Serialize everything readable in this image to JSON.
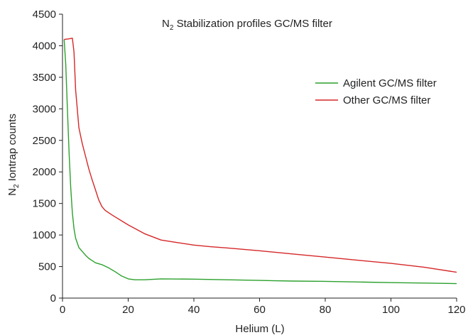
{
  "chart_data": {
    "type": "line",
    "title_main": "N",
    "title_sub": "2",
    "title_rest": " Stabilization profiles GC/MS filter",
    "xlabel": "Helium (L)",
    "ylabel_main": "N",
    "ylabel_sub": "2",
    "ylabel_rest": " Iontrap counts",
    "xlim": [
      0,
      120
    ],
    "ylim": [
      0,
      4500
    ],
    "xticks": [
      0,
      20,
      40,
      60,
      80,
      100,
      120
    ],
    "yticks": [
      0,
      500,
      1000,
      1500,
      2000,
      2500,
      3000,
      3500,
      4000,
      4500
    ],
    "grid": false,
    "legend_position": "top-right",
    "series": [
      {
        "name": "Agilent GC/MS filter",
        "color": "#2ca02c",
        "points": [
          [
            0.5,
            4100
          ],
          [
            1,
            3700
          ],
          [
            1.5,
            3000
          ],
          [
            2,
            2300
          ],
          [
            2.5,
            1750
          ],
          [
            3,
            1350
          ],
          [
            3.5,
            1100
          ],
          [
            4,
            950
          ],
          [
            5,
            800
          ],
          [
            6,
            740
          ],
          [
            7,
            680
          ],
          [
            8,
            630
          ],
          [
            10,
            560
          ],
          [
            12,
            530
          ],
          [
            14,
            480
          ],
          [
            16,
            420
          ],
          [
            18,
            350
          ],
          [
            20,
            305
          ],
          [
            22,
            290
          ],
          [
            25,
            290
          ],
          [
            30,
            305
          ],
          [
            40,
            300
          ],
          [
            50,
            290
          ],
          [
            60,
            280
          ],
          [
            70,
            270
          ],
          [
            80,
            265
          ],
          [
            90,
            255
          ],
          [
            100,
            245
          ],
          [
            110,
            238
          ],
          [
            120,
            230
          ]
        ]
      },
      {
        "name": "Other GC/MS filter",
        "color": "#d62728",
        "points": [
          [
            0.5,
            4100
          ],
          [
            2,
            4110
          ],
          [
            3,
            4120
          ],
          [
            3.5,
            3900
          ],
          [
            4,
            3300
          ],
          [
            5,
            2700
          ],
          [
            6,
            2450
          ],
          [
            7,
            2250
          ],
          [
            8,
            2050
          ],
          [
            9,
            1880
          ],
          [
            10,
            1720
          ],
          [
            11,
            1560
          ],
          [
            12,
            1450
          ],
          [
            13,
            1390
          ],
          [
            15,
            1320
          ],
          [
            20,
            1160
          ],
          [
            25,
            1020
          ],
          [
            30,
            920
          ],
          [
            35,
            880
          ],
          [
            40,
            840
          ],
          [
            45,
            815
          ],
          [
            50,
            795
          ],
          [
            60,
            750
          ],
          [
            70,
            700
          ],
          [
            80,
            650
          ],
          [
            90,
            600
          ],
          [
            100,
            550
          ],
          [
            110,
            490
          ],
          [
            120,
            410
          ]
        ]
      }
    ]
  }
}
